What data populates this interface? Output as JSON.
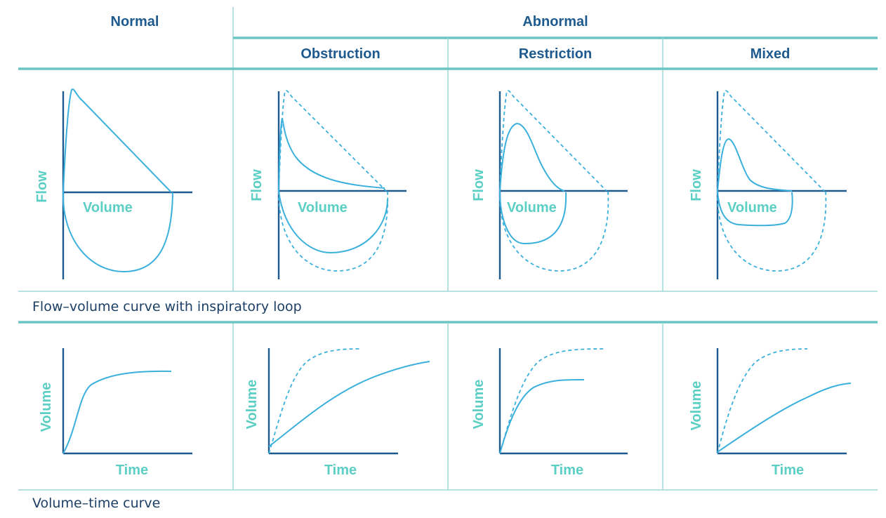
{
  "headers": {
    "normal": "Normal",
    "abnormal": "Abnormal",
    "obstruction": "Obstruction",
    "restriction": "Restriction",
    "mixed": "Mixed"
  },
  "captions": {
    "flow_volume": "Flow–volume curve with inspiratory loop",
    "volume_time": "Volume–time curve"
  },
  "axis_labels": {
    "flow": "Flow",
    "volume": "Volume",
    "time": "Time"
  },
  "colors": {
    "header_text": "#1e5a8e",
    "axis": "#1e5a8e",
    "curve": "#3bb0dc",
    "axis_label": "#5ccfc4",
    "grid": "#6cc5c2"
  }
}
